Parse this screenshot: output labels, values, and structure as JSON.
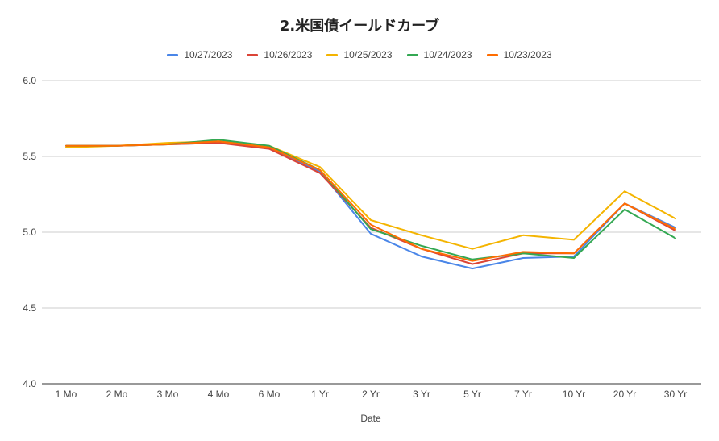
{
  "chart_data": {
    "type": "line",
    "title": "2.米国債イールドカーブ",
    "xlabel": "Date",
    "ylabel": "",
    "ylim": [
      4.0,
      6.0
    ],
    "yticks": [
      "4.0",
      "4.5",
      "5.0",
      "5.5",
      "6.0"
    ],
    "grid": true,
    "legend_position": "top",
    "categories": [
      "1 Mo",
      "2 Mo",
      "3 Mo",
      "4 Mo",
      "6 Mo",
      "1 Yr",
      "2 Yr",
      "3 Yr",
      "5 Yr",
      "7 Yr",
      "10 Yr",
      "20 Yr",
      "30 Yr"
    ],
    "series": [
      {
        "name": "10/27/2023",
        "color": "#4a86e8",
        "values": [
          5.57,
          5.57,
          5.58,
          5.59,
          5.56,
          5.4,
          4.99,
          4.84,
          4.76,
          4.83,
          4.84,
          5.19,
          5.03
        ]
      },
      {
        "name": "10/26/2023",
        "color": "#db4437",
        "values": [
          5.57,
          5.57,
          5.58,
          5.59,
          5.55,
          5.39,
          5.03,
          4.89,
          4.79,
          4.86,
          4.86,
          5.19,
          5.01
        ]
      },
      {
        "name": "10/25/2023",
        "color": "#f4b400",
        "values": [
          5.56,
          5.57,
          5.59,
          5.6,
          5.57,
          5.43,
          5.08,
          4.98,
          4.89,
          4.98,
          4.95,
          5.27,
          5.09
        ]
      },
      {
        "name": "10/24/2023",
        "color": "#34a853",
        "values": [
          5.57,
          5.57,
          5.58,
          5.61,
          5.57,
          5.41,
          5.02,
          4.91,
          4.82,
          4.86,
          4.83,
          5.15,
          4.96
        ]
      },
      {
        "name": "10/23/2023",
        "color": "#ff6d01",
        "values": [
          5.57,
          5.57,
          5.58,
          5.6,
          5.56,
          5.41,
          5.05,
          4.89,
          4.81,
          4.87,
          4.86,
          5.19,
          5.02
        ]
      }
    ]
  }
}
